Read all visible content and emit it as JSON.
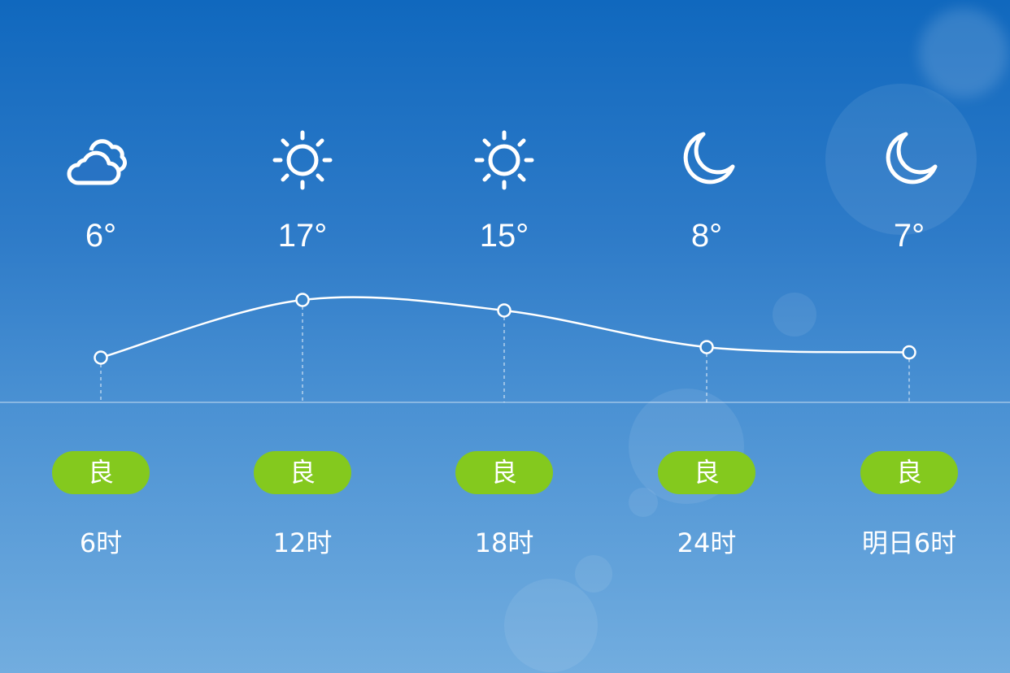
{
  "forecast": [
    {
      "icon": "cloudy-icon",
      "temp": "6°",
      "temp_value": 6,
      "aqi": "良",
      "time": "6时"
    },
    {
      "icon": "sun-icon",
      "temp": "17°",
      "temp_value": 17,
      "aqi": "良",
      "time": "12时"
    },
    {
      "icon": "sun-icon",
      "temp": "15°",
      "temp_value": 15,
      "aqi": "良",
      "time": "18时"
    },
    {
      "icon": "moon-icon",
      "temp": "8°",
      "temp_value": 8,
      "aqi": "良",
      "time": "24时"
    },
    {
      "icon": "moon-icon",
      "temp": "7°",
      "temp_value": 7,
      "aqi": "良",
      "time": "明日6时"
    }
  ],
  "colors": {
    "aqi_good": "#84c91e",
    "background_top": "#1068be",
    "background_bottom": "#72addf"
  }
}
